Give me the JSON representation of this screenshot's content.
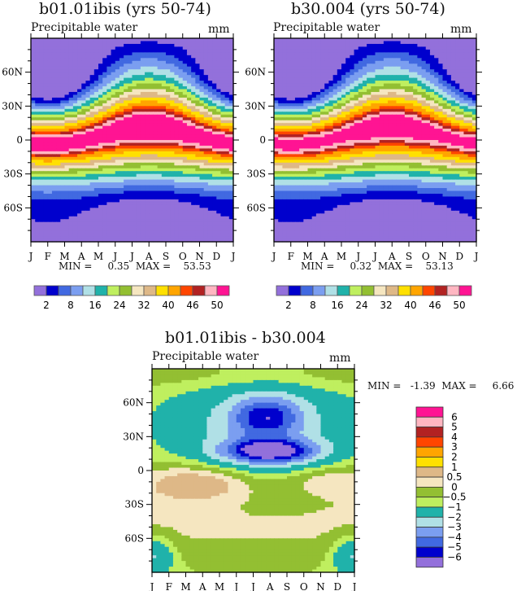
{
  "chart_data": [
    {
      "type": "heatmap",
      "id": "panel_a",
      "title": "b01.01ibis (yrs 50-74)",
      "left_string": "Precipitable water",
      "right_string": "mm",
      "x_tick_labels": [
        "J",
        "F",
        "M",
        "A",
        "M",
        "J",
        "J",
        "A",
        "S",
        "O",
        "N",
        "D",
        "J"
      ],
      "y_tick_labels": [
        "60N",
        "30N",
        "0",
        "30S",
        "60S"
      ],
      "y_tick_values": [
        60,
        30,
        0,
        -30,
        -60
      ],
      "ylim": [
        -90,
        90
      ],
      "xlim": [
        0,
        12
      ],
      "stats": "MIN =     0.35  MAX =    53.53",
      "min": 0.35,
      "max": 53.53,
      "levels": [
        2,
        5,
        8,
        12,
        16,
        20,
        24,
        28,
        32,
        36,
        40,
        44,
        46,
        48,
        50
      ],
      "labelbar_labels": [
        "2",
        "8",
        "16",
        "24",
        "32",
        "40",
        "46",
        "50"
      ],
      "colors": [
        "#9370DB",
        "#0000CD",
        "#4169E1",
        "#7B9EF0",
        "#B0E0E6",
        "#20B2AA",
        "#BFEF5F",
        "#93BF32",
        "#F5E6C0",
        "#DEB887",
        "#FFE000",
        "#FFA500",
        "#FF4500",
        "#B22222",
        "#FFB6C1",
        "#FF1493"
      ]
    },
    {
      "type": "heatmap",
      "id": "panel_b",
      "title": "b30.004 (yrs 50-74)",
      "left_string": "Precipitable water",
      "right_string": "mm",
      "x_tick_labels": [
        "J",
        "F",
        "M",
        "A",
        "M",
        "J",
        "J",
        "A",
        "S",
        "O",
        "N",
        "D",
        "J"
      ],
      "y_tick_labels": [
        "60N",
        "30N",
        "0",
        "30S",
        "60S"
      ],
      "y_tick_values": [
        60,
        30,
        0,
        -30,
        -60
      ],
      "ylim": [
        -90,
        90
      ],
      "xlim": [
        0,
        12
      ],
      "stats": "MIN =     0.32  MAX =    53.13",
      "min": 0.32,
      "max": 53.13,
      "levels": [
        2,
        5,
        8,
        12,
        16,
        20,
        24,
        28,
        32,
        36,
        40,
        44,
        46,
        48,
        50
      ],
      "labelbar_labels": [
        "2",
        "8",
        "16",
        "24",
        "32",
        "40",
        "46",
        "50"
      ],
      "colors": [
        "#9370DB",
        "#0000CD",
        "#4169E1",
        "#7B9EF0",
        "#B0E0E6",
        "#20B2AA",
        "#BFEF5F",
        "#93BF32",
        "#F5E6C0",
        "#DEB887",
        "#FFE000",
        "#FFA500",
        "#FF4500",
        "#B22222",
        "#FFB6C1",
        "#FF1493"
      ]
    },
    {
      "type": "heatmap",
      "id": "panel_diff",
      "title": "b01.01ibis - b30.004",
      "left_string": "Precipitable water",
      "right_string": "mm",
      "x_tick_labels": [
        "J",
        "F",
        "M",
        "A",
        "M",
        "J",
        "J",
        "A",
        "S",
        "O",
        "N",
        "D",
        "J"
      ],
      "y_tick_labels": [
        "60N",
        "30N",
        "0",
        "30S",
        "60S"
      ],
      "y_tick_values": [
        60,
        30,
        0,
        -30,
        -60
      ],
      "ylim": [
        -90,
        90
      ],
      "xlim": [
        0,
        12
      ],
      "stats": "MIN =   -1.39  MAX =     6.66",
      "min": -1.39,
      "max": 6.66,
      "levels": [
        -6,
        -5,
        -4,
        -3,
        -2,
        -1,
        -0.5,
        0,
        0.5,
        1,
        2,
        3,
        4,
        5,
        6
      ],
      "labelbar_labels": [
        "6",
        "5",
        "4",
        "3",
        "2",
        "1",
        "0.5",
        "0",
        "-0.5",
        "-1",
        "-2",
        "-3",
        "-4",
        "-5",
        "-6"
      ],
      "colors": [
        "#FF1493",
        "#FFB6C1",
        "#B22222",
        "#FF4500",
        "#FFA500",
        "#FFE000",
        "#DEB887",
        "#F5E6C0",
        "#93BF32",
        "#BFEF5F",
        "#20B2AA",
        "#B0E0E6",
        "#7B9EF0",
        "#4169E1",
        "#0000CD",
        "#9370DB"
      ]
    }
  ]
}
